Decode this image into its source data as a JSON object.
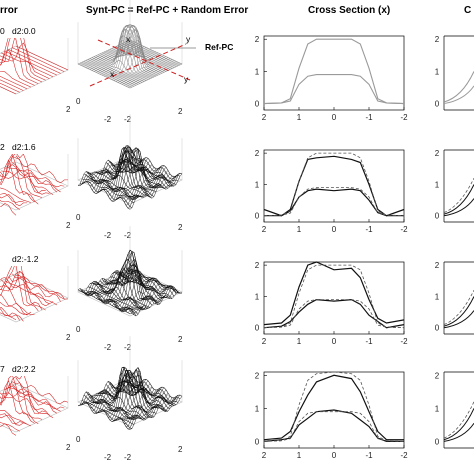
{
  "headers": {
    "col1": "rror",
    "col2": "Synt-PC = Ref-PC + Random Error",
    "col3": "Cross Section (x)",
    "col4": "C"
  },
  "annotations": {
    "ref_pc": "Ref-PC",
    "axis_x": "x",
    "axis_y": "y"
  },
  "row_labels": [
    {
      "left": "0",
      "right": "d2:0.0"
    },
    {
      "left": "2",
      "right": "d2:1.6"
    },
    {
      "left": "",
      "right": "d2:-1.2"
    },
    {
      "left": "7",
      "right": "d2:2.2"
    }
  ],
  "surface_ticks": [
    "0",
    "-2",
    "-2",
    "2"
  ],
  "left_ticks": [
    "2",
    "2",
    "2",
    "2"
  ],
  "colors": {
    "red_surface": "#d42020",
    "ref_surface": "#888888",
    "synt_surface": "#111111",
    "ref_curve": "#9a9a9a",
    "synt_curve": "#111111",
    "dashed": "#d02020"
  },
  "chart_data": [
    {
      "type": "line",
      "row": 1,
      "x": [
        2,
        1.5,
        1.25,
        1,
        0.75,
        0.5,
        0,
        -0.5,
        -0.75,
        -1,
        -1.25,
        -1.5,
        -2
      ],
      "series": [
        {
          "values": [
            0.0,
            0.02,
            0.15,
            1.1,
            1.85,
            2.0,
            2.0,
            2.0,
            1.85,
            1.1,
            0.15,
            0.02,
            0.0
          ]
        },
        {
          "values": [
            0.0,
            0.02,
            0.08,
            0.6,
            0.85,
            0.9,
            0.9,
            0.9,
            0.85,
            0.6,
            0.08,
            0.02,
            0.0
          ]
        }
      ],
      "xticks": [
        "2",
        "1",
        "0",
        "-1",
        "-2"
      ],
      "yticks": [
        "0",
        "1",
        "2"
      ],
      "ylim": [
        -0.2,
        2.1
      ]
    },
    {
      "type": "line",
      "row": 2,
      "x": [
        2,
        1.5,
        1.25,
        1,
        0.75,
        0.5,
        0,
        -0.5,
        -0.75,
        -1,
        -1.25,
        -1.5,
        -2
      ],
      "series": [
        {
          "values": [
            0.0,
            0.0,
            0.2,
            1.1,
            1.8,
            1.85,
            1.9,
            1.8,
            1.7,
            1.0,
            0.2,
            0.0,
            0.0
          ]
        },
        {
          "values": [
            0.2,
            0.0,
            0.15,
            0.6,
            0.8,
            0.85,
            0.8,
            0.85,
            0.8,
            0.5,
            0.1,
            0.0,
            0.2
          ]
        },
        {
          "values": [
            0.0,
            0.02,
            0.15,
            1.1,
            1.85,
            2.0,
            2.0,
            2.0,
            1.85,
            1.1,
            0.15,
            0.02,
            0.0
          ]
        },
        {
          "values": [
            0.0,
            0.02,
            0.08,
            0.6,
            0.85,
            0.9,
            0.9,
            0.9,
            0.85,
            0.6,
            0.08,
            0.02,
            0.0
          ]
        }
      ],
      "xticks": [
        "2",
        "1",
        "0",
        "-1",
        "-2"
      ],
      "yticks": [
        "0",
        "1",
        "2"
      ],
      "ylim": [
        -0.2,
        2.1
      ]
    },
    {
      "type": "line",
      "row": 3,
      "x": [
        2,
        1.5,
        1.25,
        1,
        0.75,
        0.5,
        0,
        -0.5,
        -0.75,
        -1,
        -1.25,
        -1.5,
        -2
      ],
      "series": [
        {
          "values": [
            0.1,
            0.15,
            0.4,
            1.3,
            2.0,
            2.1,
            1.85,
            1.9,
            1.6,
            0.9,
            0.3,
            0.15,
            0.25
          ]
        },
        {
          "values": [
            0.0,
            0.05,
            0.2,
            0.5,
            0.75,
            0.9,
            0.85,
            0.9,
            0.75,
            0.4,
            0.2,
            0.0,
            0.1
          ]
        },
        {
          "values": [
            0.0,
            0.02,
            0.15,
            1.1,
            1.85,
            2.0,
            2.0,
            2.0,
            1.85,
            1.1,
            0.15,
            0.02,
            0.0
          ]
        },
        {
          "values": [
            0.0,
            0.02,
            0.08,
            0.6,
            0.85,
            0.9,
            0.9,
            0.9,
            0.85,
            0.6,
            0.08,
            0.02,
            0.0
          ]
        }
      ],
      "xticks": [
        "2",
        "1",
        "0",
        "-1",
        "-2"
      ],
      "yticks": [
        "0",
        "1",
        "2"
      ],
      "ylim": [
        -0.2,
        2.1
      ]
    },
    {
      "type": "line",
      "row": 4,
      "x": [
        2,
        1.5,
        1.25,
        1,
        0.75,
        0.5,
        0,
        -0.5,
        -0.75,
        -1,
        -1.25,
        -1.5,
        -2
      ],
      "series": [
        {
          "values": [
            0.05,
            0.1,
            0.3,
            0.9,
            1.4,
            1.8,
            2.0,
            1.9,
            1.5,
            0.9,
            0.3,
            0.05,
            0.05
          ]
        },
        {
          "values": [
            0.0,
            0.05,
            0.1,
            0.5,
            0.7,
            0.9,
            0.95,
            0.85,
            0.65,
            0.45,
            0.1,
            0.0,
            0.0
          ]
        },
        {
          "values": [
            0.0,
            0.02,
            0.15,
            1.1,
            1.85,
            2.05,
            2.1,
            2.05,
            1.85,
            1.1,
            0.15,
            0.02,
            0.0
          ]
        },
        {
          "values": [
            0.0,
            0.02,
            0.08,
            0.6,
            0.85,
            0.9,
            0.9,
            0.9,
            0.85,
            0.6,
            0.08,
            0.02,
            0.0
          ]
        }
      ],
      "xticks": [
        "2",
        "1",
        "0",
        "-1",
        "-2"
      ],
      "yticks": [
        "0",
        "1",
        "2"
      ],
      "ylim": [
        -0.2,
        2.1
      ]
    }
  ]
}
